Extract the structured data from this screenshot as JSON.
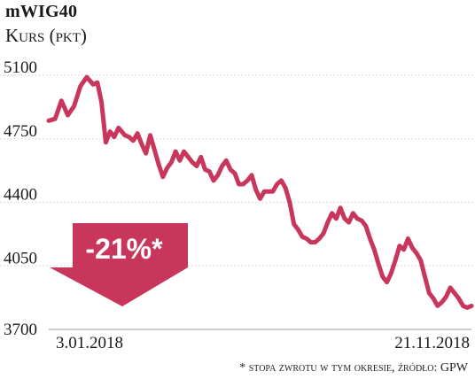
{
  "title": "mWIG40",
  "subtitle": "Kurs (pkt)",
  "footnote": "* stopa zwrotu w tym okresie, źródło: GPW",
  "badge": {
    "text": "-21%*",
    "color": "#c8375b"
  },
  "colors": {
    "line": "#c8375b",
    "grid": "#d9d9d9",
    "axis": "#9a9a9a"
  },
  "chart_data": {
    "type": "line",
    "title": "mWIG40",
    "ylabel": "Kurs (pkt)",
    "ylim": [
      3700,
      5150
    ],
    "yticks": [
      3700,
      4050,
      4400,
      4750,
      5100
    ],
    "xlim": [
      0,
      1
    ],
    "xtick_labels": [
      {
        "x": 0,
        "label": "3.01.2018"
      },
      {
        "x": 1,
        "label": "21.11.2018"
      }
    ],
    "grid": "horizontal",
    "series": [
      {
        "x": [
          0.0,
          0.015,
          0.03,
          0.045,
          0.06,
          0.075,
          0.09,
          0.105,
          0.115,
          0.125,
          0.135,
          0.145,
          0.155,
          0.165,
          0.18,
          0.19,
          0.2,
          0.21,
          0.22,
          0.23,
          0.24,
          0.25,
          0.26,
          0.27,
          0.28,
          0.29,
          0.3,
          0.31,
          0.32,
          0.33,
          0.34,
          0.35,
          0.36,
          0.37,
          0.38,
          0.39,
          0.4,
          0.41,
          0.42,
          0.43,
          0.44,
          0.45,
          0.46,
          0.47,
          0.48,
          0.49,
          0.5,
          0.51,
          0.52,
          0.53,
          0.54,
          0.55,
          0.56,
          0.57,
          0.58,
          0.59,
          0.6,
          0.61,
          0.62,
          0.63,
          0.64,
          0.65,
          0.66,
          0.67,
          0.68,
          0.69,
          0.7,
          0.71,
          0.72,
          0.73,
          0.74,
          0.75,
          0.76,
          0.77,
          0.78,
          0.79,
          0.8,
          0.81,
          0.82,
          0.83,
          0.84,
          0.85,
          0.86,
          0.87,
          0.88,
          0.89,
          0.9,
          0.91,
          0.92,
          0.93,
          0.94,
          0.95,
          0.96,
          0.97,
          0.98,
          0.99,
          1.0
        ],
        "y": [
          4850,
          4860,
          4960,
          4880,
          4930,
          5040,
          5090,
          5050,
          5060,
          4950,
          4730,
          4790,
          4760,
          4810,
          4770,
          4760,
          4740,
          4780,
          4720,
          4670,
          4770,
          4690,
          4610,
          4540,
          4590,
          4620,
          4680,
          4630,
          4680,
          4650,
          4620,
          4600,
          4650,
          4580,
          4570,
          4520,
          4550,
          4600,
          4630,
          4580,
          4560,
          4500,
          4500,
          4520,
          4550,
          4470,
          4420,
          4460,
          4460,
          4460,
          4500,
          4520,
          4480,
          4400,
          4280,
          4250,
          4210,
          4200,
          4180,
          4180,
          4200,
          4230,
          4290,
          4340,
          4310,
          4370,
          4310,
          4290,
          4340,
          4310,
          4300,
          4270,
          4200,
          4140,
          4060,
          3990,
          3960,
          4010,
          4080,
          4160,
          4140,
          4200,
          4150,
          4120,
          4080,
          3990,
          3900,
          3870,
          3830,
          3850,
          3880,
          3930,
          3900,
          3870,
          3830,
          3820,
          3830
        ]
      }
    ]
  }
}
